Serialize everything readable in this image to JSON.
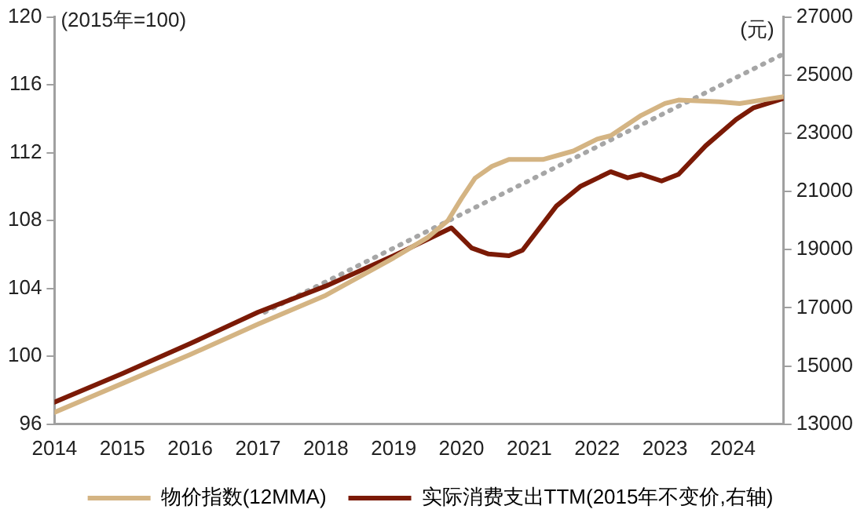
{
  "chart_data": {
    "type": "line",
    "ylabel": "(2015年=100)",
    "y2label": "(元)",
    "xlim": [
      2014,
      2024.75
    ],
    "xticks": [
      2014,
      2015,
      2016,
      2017,
      2018,
      2019,
      2020,
      2021,
      2022,
      2023,
      2024
    ],
    "ylim": [
      96,
      120
    ],
    "yticks": [
      96,
      100,
      104,
      108,
      112,
      116,
      120
    ],
    "y2lim": [
      13000,
      27000
    ],
    "y2ticks": [
      13000,
      15000,
      17000,
      19000,
      21000,
      23000,
      25000,
      27000
    ],
    "grid": false,
    "legend": "bottom",
    "marker": "none",
    "series": [
      {
        "name": "物价指数(12MMA)",
        "color": "#d4b483",
        "line_style": "solid",
        "x": [
          2014,
          2015,
          2016,
          2017,
          2018,
          2019,
          2019.5,
          2019.8,
          2020,
          2020.2,
          2020.45,
          2020.7,
          2021.2,
          2021.65,
          2022,
          2022.2,
          2022.65,
          2023,
          2023.2,
          2023.8,
          2024.1,
          2024.75
        ],
        "values": [
          96.7,
          98.4,
          100.1,
          101.9,
          103.6,
          105.8,
          107,
          108,
          109.3,
          110.5,
          111.2,
          111.6,
          111.6,
          112.1,
          112.8,
          113,
          114.2,
          114.9,
          115.1,
          115,
          114.9,
          115.3
        ]
      },
      {
        "name": "实际消费支出TTM(2015年不变价,右轴)",
        "color": "#7b1a06",
        "axis": "y2",
        "line_style": "solid",
        "x": [
          2014,
          2015,
          2016,
          2017,
          2018,
          2019,
          2019.85,
          2020.15,
          2020.4,
          2020.7,
          2020.9,
          2021.4,
          2021.75,
          2022.2,
          2022.45,
          2022.65,
          2022.95,
          2023.2,
          2023.6,
          2024.05,
          2024.3,
          2024.75
        ],
        "values": [
          13760,
          14740,
          15770,
          16850,
          17750,
          18790,
          19750,
          19060,
          18850,
          18790,
          18980,
          20500,
          21170,
          21680,
          21470,
          21590,
          21360,
          21590,
          22570,
          23480,
          23870,
          24200
        ]
      },
      {
        "color": "#a6a6a6",
        "axis": "y2",
        "line_style": "dotted",
        "x": [
          2017.1,
          2024.75
        ],
        "values": [
          16850,
          25730
        ]
      }
    ]
  }
}
